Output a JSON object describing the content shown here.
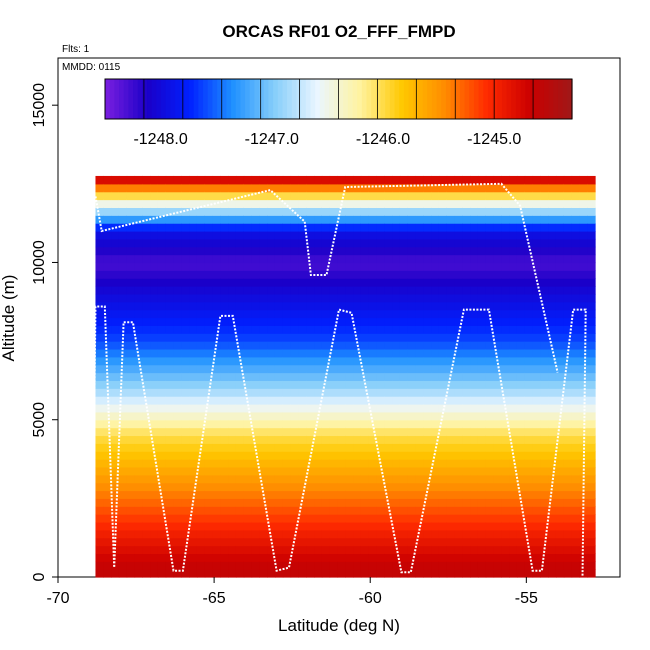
{
  "chart_data": {
    "type": "heatmap",
    "title": "ORCAS RF01 O2_FFF_FMPD",
    "annotations": [
      "Flts: 1",
      "MMDD: 0115"
    ],
    "xlabel": "Latitude (deg N)",
    "ylabel": "Altitude (m)",
    "xlim": [
      -70,
      -52
    ],
    "ylim": [
      0,
      16500
    ],
    "x_ticks": [
      -70,
      -65,
      -60,
      -55
    ],
    "y_ticks": [
      0,
      5000,
      10000,
      15000
    ],
    "x_tick_labels": [
      "-70",
      "-65",
      "-60",
      "-55"
    ],
    "y_tick_labels": [
      "0",
      "5000",
      "10000",
      "15000"
    ],
    "colorbar": {
      "range": [
        -1248.5,
        -1244.3
      ],
      "tick_values": [
        -1248.0,
        -1247.0,
        -1246.0,
        -1245.0
      ],
      "tick_labels": [
        "-1248.0",
        "-1247.0",
        "-1246.0",
        "-1245.0"
      ],
      "colors": [
        "#7b1fe0",
        "#1a00c8",
        "#0020ff",
        "#1e90ff",
        "#87cefa",
        "#eaf6ff",
        "#fff3a0",
        "#ffc800",
        "#ff8c00",
        "#ff2a00",
        "#cc0000",
        "#a01818"
      ]
    },
    "altitude_profile": [
      {
        "altitude": 250,
        "value": -1244.6
      },
      {
        "altitude": 1500,
        "value": -1245.0
      },
      {
        "altitude": 3000,
        "value": -1245.5
      },
      {
        "altitude": 4500,
        "value": -1246.0
      },
      {
        "altitude": 6000,
        "value": -1246.9
      },
      {
        "altitude": 7500,
        "value": -1247.6
      },
      {
        "altitude": 9000,
        "value": -1248.0
      },
      {
        "altitude": 10000,
        "value": -1248.3
      },
      {
        "altitude": 11000,
        "value": -1247.9
      },
      {
        "altitude": 12000,
        "value": -1246.3
      },
      {
        "altitude": 12700,
        "value": -1244.6
      }
    ],
    "data_extent": {
      "lat": [
        -68.8,
        -52.8
      ],
      "altitude": [
        0,
        12700
      ]
    },
    "flight_track": [
      [
        -68.9,
        200
      ],
      [
        -68.8,
        8600
      ],
      [
        -68.5,
        8600
      ],
      [
        -68.2,
        300
      ],
      [
        -67.9,
        8100
      ],
      [
        -67.6,
        8100
      ],
      [
        -66.3,
        200
      ],
      [
        -66.0,
        200
      ],
      [
        -64.8,
        8300
      ],
      [
        -64.4,
        8300
      ],
      [
        -63.0,
        200
      ],
      [
        -62.6,
        300
      ],
      [
        -61.0,
        8500
      ],
      [
        -60.6,
        8400
      ],
      [
        -59.0,
        150
      ],
      [
        -58.7,
        150
      ],
      [
        -57.0,
        8500
      ],
      [
        -56.2,
        8500
      ],
      [
        -54.8,
        200
      ],
      [
        -54.5,
        200
      ],
      [
        -53.5,
        8500
      ],
      [
        -53.1,
        8500
      ],
      [
        -53.2,
        0
      ]
    ],
    "upper_track": [
      [
        -68.8,
        12100
      ],
      [
        -68.6,
        11000
      ],
      [
        -63.2,
        12300
      ],
      [
        -62.1,
        11300
      ],
      [
        -61.9,
        9600
      ],
      [
        -61.4,
        9600
      ],
      [
        -60.8,
        12400
      ],
      [
        -55.8,
        12500
      ],
      [
        -55.2,
        11800
      ],
      [
        -54.0,
        6500
      ]
    ],
    "grid": false,
    "legend_position": "top"
  }
}
